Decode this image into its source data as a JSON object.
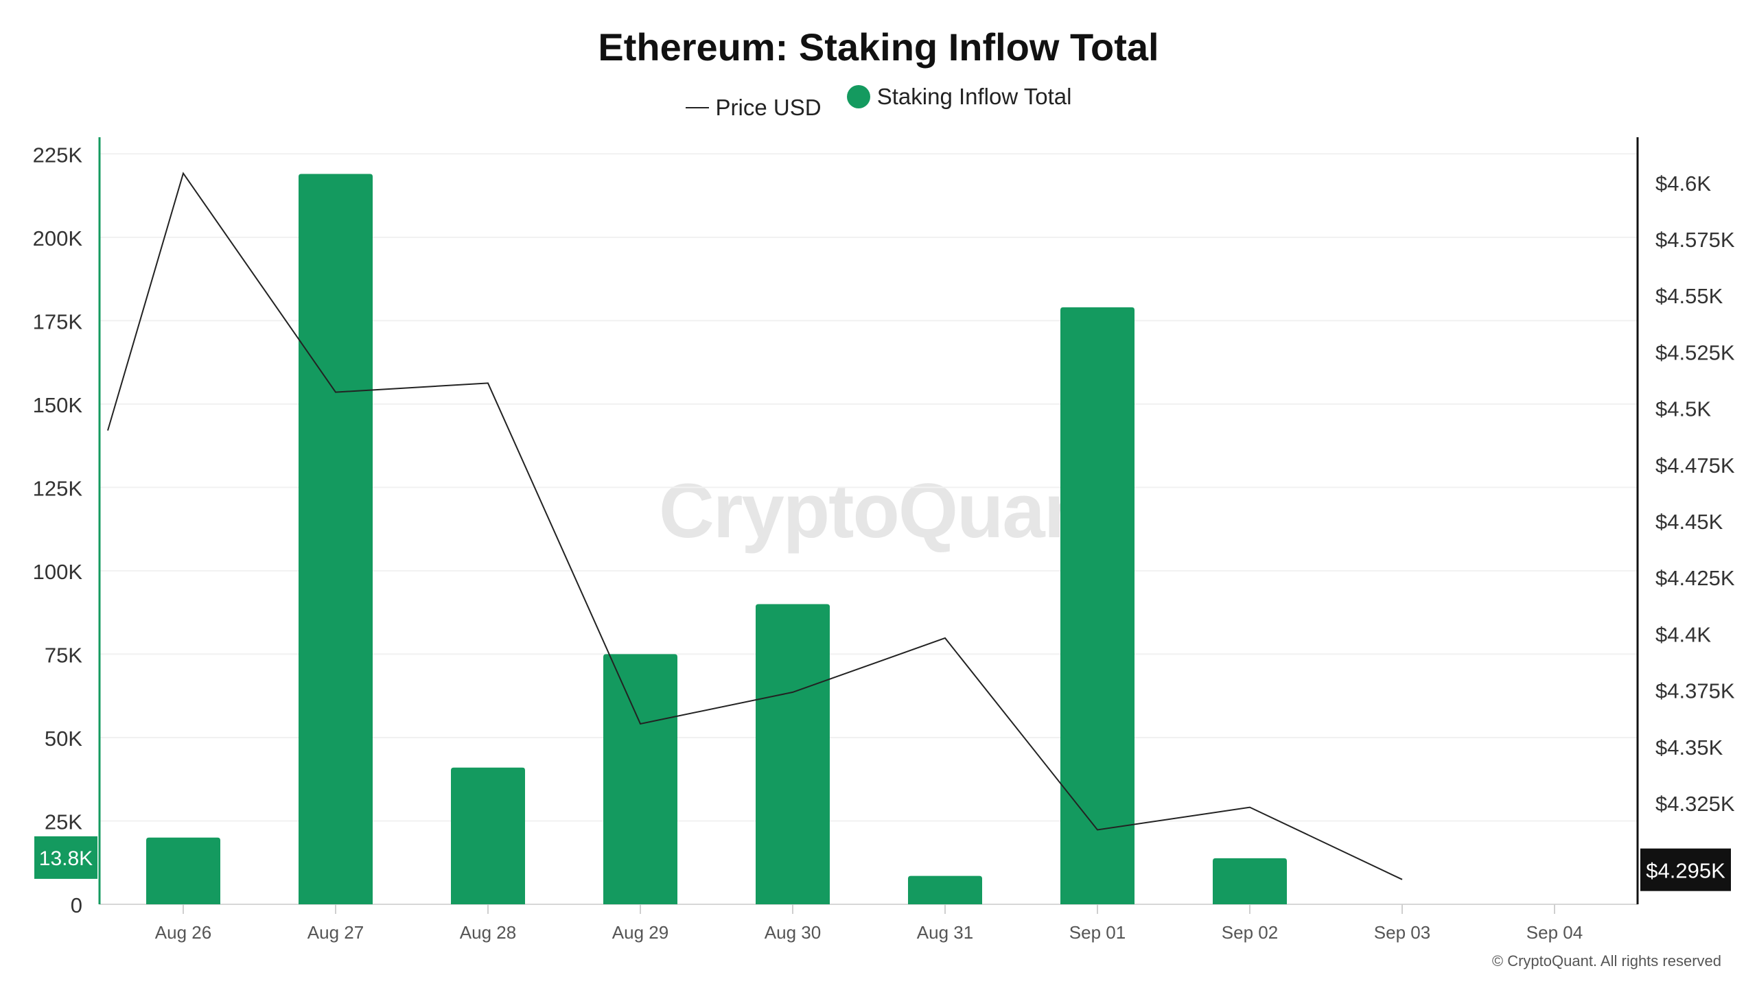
{
  "title": "Ethereum: Staking Inflow Total",
  "legend": {
    "price_label": "Price USD",
    "inflow_label": "Staking Inflow Total"
  },
  "watermark": "CryptoQuant",
  "footer": "© CryptoQuant. All rights reserved",
  "colors": {
    "bar": "#149a5f",
    "price_line": "#222222",
    "left_axis": "#149a5f",
    "right_axis": "#111111"
  },
  "chart_data": {
    "type": "bar",
    "title": "Ethereum: Staking Inflow Total",
    "categories": [
      "Aug 26",
      "Aug 27",
      "Aug 28",
      "Aug 29",
      "Aug 30",
      "Aug 31",
      "Sep 01",
      "Sep 02",
      "Sep 03",
      "Sep 04"
    ],
    "series": [
      {
        "name": "Staking Inflow Total",
        "type": "bar",
        "axis": "left",
        "values": [
          20000,
          219000,
          41000,
          75000,
          90000,
          8500,
          179000,
          13800,
          null,
          null
        ]
      },
      {
        "name": "Price USD",
        "type": "line",
        "axis": "right",
        "start_value": 4490,
        "values": [
          4604,
          4507,
          4511,
          4360,
          4374,
          4398,
          4313,
          4323,
          4291,
          null
        ]
      }
    ],
    "left_axis": {
      "ylim": [
        0,
        230000
      ],
      "ticks": [
        0,
        25000,
        50000,
        75000,
        100000,
        125000,
        150000,
        175000,
        200000,
        225000
      ],
      "tick_labels": [
        "0",
        "25K",
        "50K",
        "75K",
        "100K",
        "125K",
        "150K",
        "175K",
        "200K",
        "225K"
      ],
      "current_value_label": "13.8K",
      "current_value": 13800
    },
    "right_axis": {
      "ylim": [
        4280,
        4620
      ],
      "ticks": [
        4325,
        4350,
        4375,
        4400,
        4425,
        4450,
        4475,
        4500,
        4525,
        4550,
        4575,
        4600
      ],
      "tick_labels": [
        "$4.325K",
        "$4.35K",
        "$4.375K",
        "$4.4K",
        "$4.425K",
        "$4.45K",
        "$4.475K",
        "$4.5K",
        "$4.525K",
        "$4.55K",
        "$4.575K",
        "$4.6K"
      ],
      "current_value_label": "$4.295K",
      "current_value": 4295
    },
    "grid": true,
    "legend_position": "top-center"
  }
}
